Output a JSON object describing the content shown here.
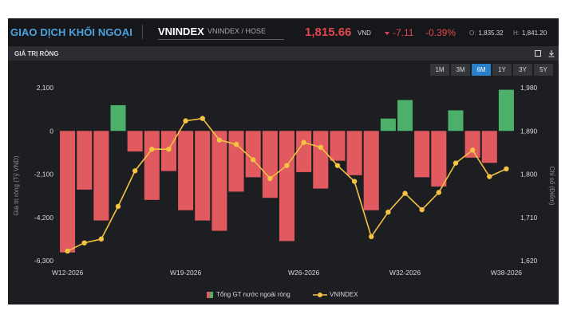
{
  "header": {
    "app_title": "GIAO DỊCH KHỐI NGOẠI",
    "ticker": "VNINDEX",
    "exchange": "VNINDEX / HOSE",
    "price": "1,815.66",
    "price_unit": "VND",
    "change": "-7.11",
    "change_pct": "-0.39%",
    "open_label": "O:",
    "open_value": "1,835.32",
    "high_label": "H:",
    "high_value": "1,841.20"
  },
  "panel": {
    "title": "GIÁ TRỊ RÒNG",
    "icons": [
      "square-icon",
      "download-icon"
    ]
  },
  "timeframes": [
    {
      "label": "1M",
      "active": false
    },
    {
      "label": "3M",
      "active": false
    },
    {
      "label": "6M",
      "active": true
    },
    {
      "label": "1Y",
      "active": false
    },
    {
      "label": "3Y",
      "active": false
    },
    {
      "label": "5Y",
      "active": false
    }
  ],
  "colors": {
    "positive": "#4caf6a",
    "negative": "#e05a5f",
    "line": "#f5c242",
    "accent": "#2a7fc9"
  },
  "chart_data": {
    "type": "bar",
    "xlabel": "",
    "ylabel": "Giá trị ròng (Tỷ VND)",
    "y2label": "Chỉ số (Điểm)",
    "ylim": [
      -6300,
      2100
    ],
    "y2lim": [
      1620,
      1980
    ],
    "yticks": [
      2100,
      0,
      -2100,
      -4200,
      -6300
    ],
    "ytick_labels": [
      "2,100",
      "0",
      "-2,100",
      "-4,200",
      "-6,300"
    ],
    "y2ticks": [
      1980,
      1890,
      1800,
      1710,
      1620
    ],
    "y2tick_labels": [
      "1,980",
      "1,890",
      "1,800",
      "1,710",
      "1,620"
    ],
    "xtick_labels": [
      {
        "label": "W12-2026",
        "index": 0
      },
      {
        "label": "W19-2026",
        "index": 7
      },
      {
        "label": "W26-2026",
        "index": 14
      },
      {
        "label": "W32-2026",
        "index": 20
      },
      {
        "label": "W38-2026",
        "index": 26
      }
    ],
    "series": [
      {
        "name": "Tổng GT nước ngoài ròng",
        "type": "bar",
        "values": [
          -5900,
          -2850,
          -4350,
          1250,
          -1000,
          -3350,
          -1950,
          -3850,
          -4350,
          -4850,
          -2950,
          -2250,
          -3250,
          -5350,
          -2000,
          -2800,
          -1450,
          -2150,
          -3850,
          600,
          1500,
          -2250,
          -2700,
          1000,
          -1300,
          -1550,
          2000
        ]
      },
      {
        "name": "VNINDEX",
        "type": "line",
        "values": [
          1640,
          1657,
          1665,
          1733,
          1807,
          1852,
          1852,
          1911,
          1916,
          1871,
          1862,
          1830,
          1791,
          1818,
          1866,
          1856,
          1818,
          1785,
          1670,
          1721,
          1760,
          1726,
          1762,
          1823,
          1850,
          1795,
          1811
        ]
      }
    ],
    "legend": "bottom-center",
    "grid": false
  }
}
